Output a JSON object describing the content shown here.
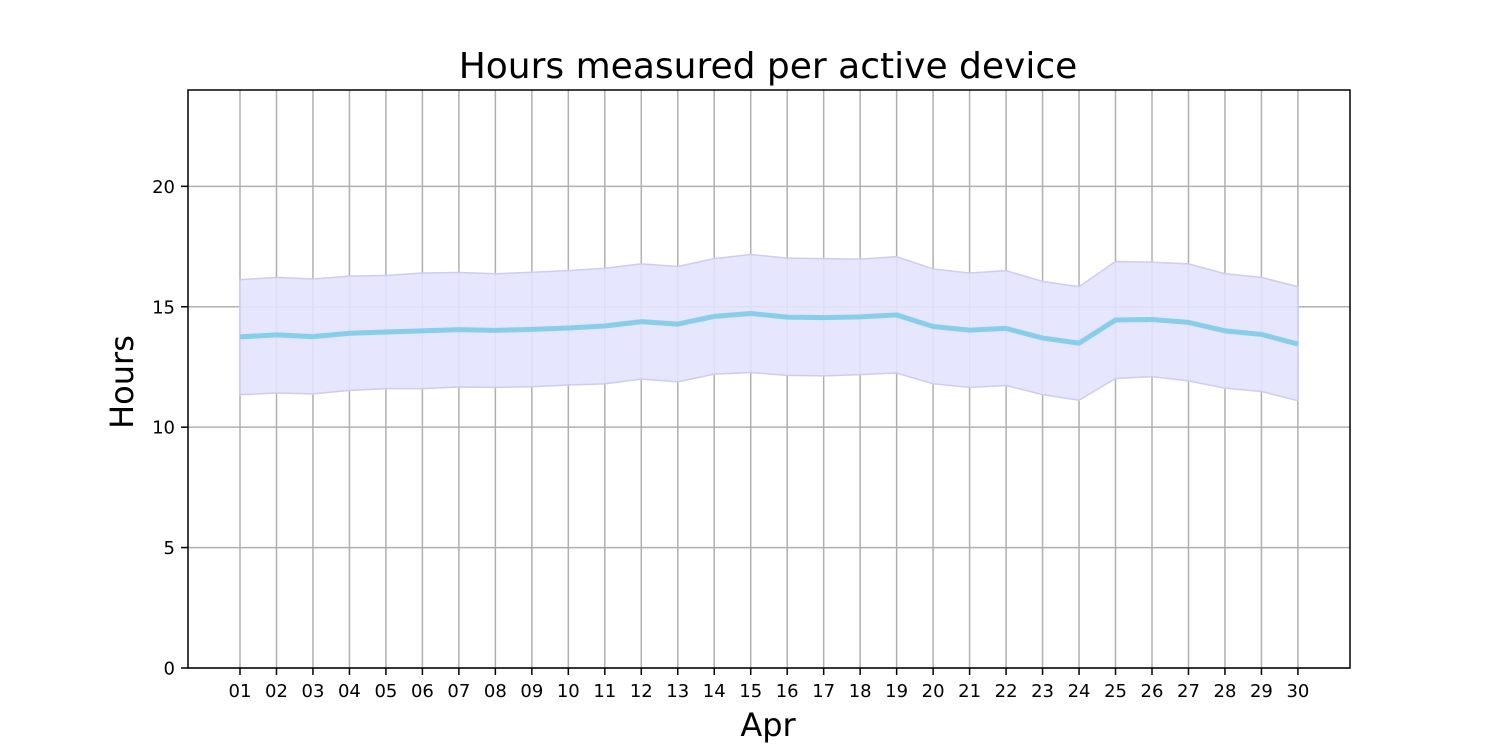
{
  "chart_data": {
    "type": "line",
    "title": "Hours measured per active device",
    "xlabel": "Apr",
    "ylabel": "Hours",
    "categories": [
      "01",
      "02",
      "03",
      "04",
      "05",
      "06",
      "07",
      "08",
      "09",
      "10",
      "11",
      "12",
      "13",
      "14",
      "15",
      "16",
      "17",
      "18",
      "19",
      "20",
      "21",
      "22",
      "23",
      "24",
      "25",
      "26",
      "27",
      "28",
      "29",
      "30"
    ],
    "series": [
      {
        "values": [
          13.75,
          13.83,
          13.76,
          13.9,
          13.95,
          14.0,
          14.05,
          14.02,
          14.06,
          14.12,
          14.2,
          14.38,
          14.28,
          14.6,
          14.72,
          14.57,
          14.55,
          14.58,
          14.66,
          14.18,
          14.03,
          14.1,
          13.7,
          13.49,
          14.45,
          14.47,
          14.35,
          14.0,
          13.85,
          13.45
        ],
        "upper": [
          16.12,
          16.22,
          16.15,
          16.27,
          16.3,
          16.4,
          16.42,
          16.37,
          16.43,
          16.5,
          16.6,
          16.78,
          16.67,
          17.0,
          17.17,
          17.02,
          17.0,
          16.98,
          17.08,
          16.57,
          16.4,
          16.5,
          16.05,
          15.83,
          16.88,
          16.85,
          16.78,
          16.37,
          16.22,
          15.83
        ],
        "lower": [
          11.35,
          11.42,
          11.38,
          11.53,
          11.6,
          11.6,
          11.67,
          11.65,
          11.68,
          11.75,
          11.8,
          12.0,
          11.88,
          12.2,
          12.27,
          12.15,
          12.13,
          12.18,
          12.25,
          11.8,
          11.65,
          11.73,
          11.35,
          11.12,
          12.02,
          12.1,
          11.92,
          11.62,
          11.48,
          11.1
        ],
        "line_color": "#87ceeb",
        "band_color": "#e3e3ff",
        "band_edge_color": "#ccccf5"
      }
    ],
    "ylim": [
      0,
      24
    ],
    "yticks": [
      0,
      5,
      10,
      15,
      20
    ],
    "grid": true,
    "legend": "none"
  }
}
